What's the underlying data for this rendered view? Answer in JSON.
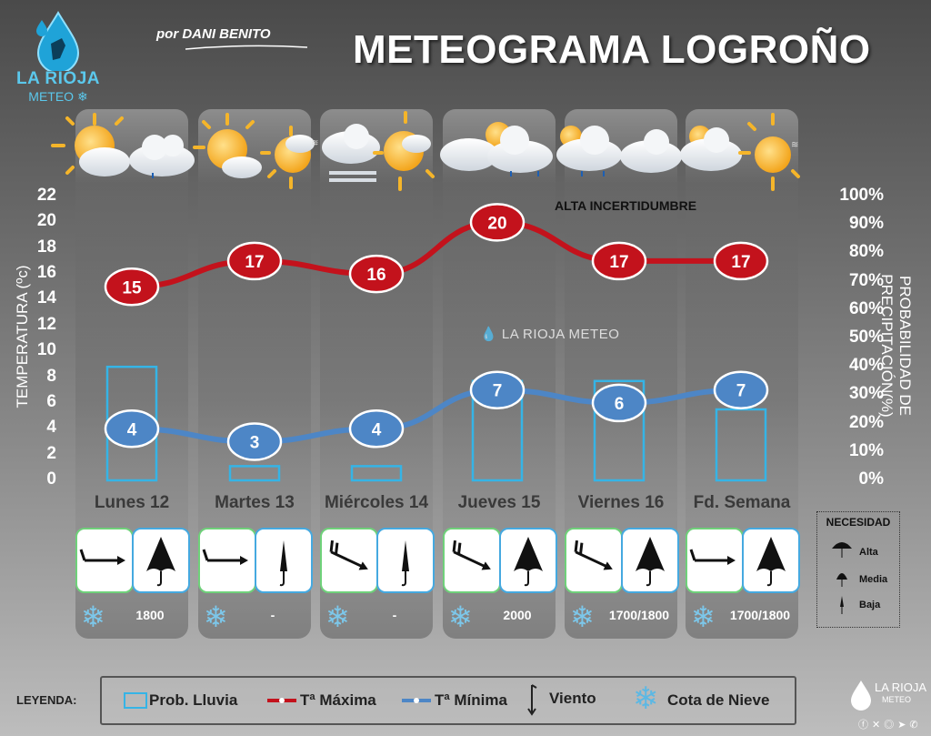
{
  "header": {
    "brand": "LA RIOJA",
    "brand_sub": "METEO",
    "byline_prefix": "por",
    "byline_name": "DANI BENITO",
    "title": "METEOGRAMA LOGROÑO"
  },
  "chart_data": {
    "type": "line",
    "title": "METEOGRAMA LOGROÑO",
    "categories": [
      "Lunes 12",
      "Martes 13",
      "Miércoles 14",
      "Jueves 15",
      "Viernes 16",
      "Fd. Semana"
    ],
    "series": [
      {
        "name": "Tª Máxima",
        "values": [
          15,
          17,
          16,
          20,
          17,
          17
        ],
        "color": "#c3121c"
      },
      {
        "name": "Tª Mínima",
        "values": [
          4,
          3,
          4,
          7,
          6,
          7
        ],
        "color": "#4d86c6"
      },
      {
        "name": "Prob. Lluvia",
        "type": "bar",
        "axis": "right",
        "values": [
          40,
          5,
          5,
          35,
          35,
          25
        ],
        "color": "#35b4e6"
      }
    ],
    "ylabel": "TEMPERATURA (ºc)",
    "y2label": "PROBABILIDAD DE PRECIPITACIÓN(%)",
    "ylim": [
      0,
      22
    ],
    "y2lim": [
      0,
      100
    ],
    "yticks": [
      "22",
      "20",
      "18",
      "16",
      "14",
      "12",
      "10",
      "8",
      "6",
      "4",
      "2",
      "0"
    ],
    "y2ticks": [
      "100%",
      "90%",
      "80%",
      "70%",
      "60%",
      "50%",
      "40%",
      "30%",
      "20%",
      "10%",
      "0%"
    ],
    "annotation": "ALTA INCERTIDUMBRE",
    "watermark": "LA RIOJA METEO"
  },
  "days": [
    {
      "name": "Lunes 12",
      "wind": "W",
      "need": "alta",
      "snow": "1800",
      "icons": [
        "sun-cloud-icon",
        "cloud-rain-icon"
      ]
    },
    {
      "name": "Martes 13",
      "wind": "W",
      "need": "baja",
      "snow": "-",
      "icons": [
        "sun-cloud-icon",
        "sun-haze-icon"
      ]
    },
    {
      "name": "Miércoles 14",
      "wind": "NW",
      "need": "baja",
      "snow": "-",
      "icons": [
        "cloud-fog-icon",
        "sun-cloud-haze-icon"
      ]
    },
    {
      "name": "Jueves 15",
      "wind": "NW",
      "need": "alta",
      "snow": "2000",
      "icons": [
        "cloud-sun-icon",
        "cloud-rain-icon"
      ]
    },
    {
      "name": "Viernes 16",
      "wind": "NW",
      "need": "alta",
      "snow": "1700/1800",
      "icons": [
        "cloud-rain-icon",
        "cloud-icon"
      ]
    },
    {
      "name": "Fd. Semana",
      "wind": "W",
      "need": "alta",
      "snow": "1700/1800",
      "icons": [
        "cloud-icon",
        "sun-haze-icon"
      ]
    }
  ],
  "necesidad": {
    "title": "NECESIDAD",
    "levels": [
      "Alta",
      "Media",
      "Baja"
    ]
  },
  "legend": {
    "title": "LEYENDA:",
    "items": [
      "Prob. Lluvia",
      "Tª Máxima",
      "Tª Mínima",
      "Viento",
      "Cota de Nieve"
    ]
  },
  "footer_logo": {
    "t1": "LA RIOJA",
    "t2": "METEO"
  },
  "colors": {
    "max": "#c3121c",
    "min": "#4d86c6",
    "rain": "#35b4e6",
    "snow": "#7cc7ea"
  }
}
